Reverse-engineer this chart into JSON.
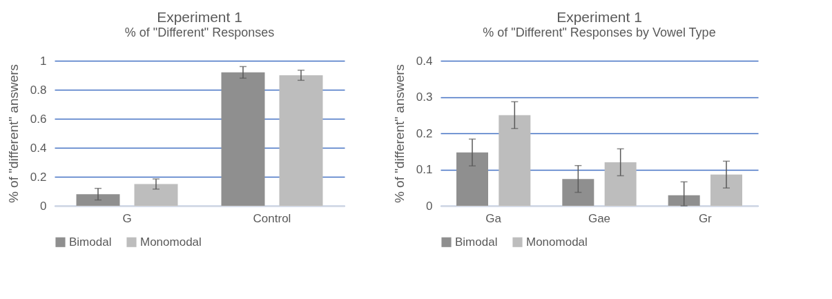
{
  "chart_data": [
    {
      "type": "bar",
      "title": "Experiment 1",
      "subtitle": "% of \"Different\" Responses",
      "ylabel": "% of \"different\" answers",
      "categories": [
        "G",
        "Control"
      ],
      "ylim": [
        0,
        1
      ],
      "yticks": [
        0,
        0.2,
        0.4,
        0.6,
        0.8,
        1
      ],
      "grid": "y",
      "legend": "bottom",
      "series": [
        {
          "name": "Bimodal",
          "color": "#8f8f8f",
          "values": [
            0.08,
            0.92
          ],
          "errors": [
            0.04,
            0.04
          ]
        },
        {
          "name": "Monomodal",
          "color": "#bdbdbd",
          "values": [
            0.15,
            0.9
          ],
          "errors": [
            0.035,
            0.035
          ]
        }
      ]
    },
    {
      "type": "bar",
      "title": "Experiment 1",
      "subtitle": "% of \"Different\" Responses by Vowel Type",
      "ylabel": "% of \"different\" answers",
      "categories": [
        "Ga",
        "Gae",
        "Gr"
      ],
      "ylim": [
        0,
        0.4
      ],
      "yticks": [
        0,
        0.1,
        0.2,
        0.3,
        0.4
      ],
      "grid": "y",
      "legend": "bottom",
      "series": [
        {
          "name": "Bimodal",
          "color": "#8f8f8f",
          "values": [
            0.147,
            0.074,
            0.029
          ],
          "errors": [
            0.037,
            0.037,
            [
              0.0,
              0.066
            ]
          ]
        },
        {
          "name": "Monomodal",
          "color": "#bdbdbd",
          "values": [
            0.25,
            0.12,
            0.086
          ],
          "errors": [
            0.037,
            0.037,
            0.037
          ]
        }
      ]
    }
  ]
}
